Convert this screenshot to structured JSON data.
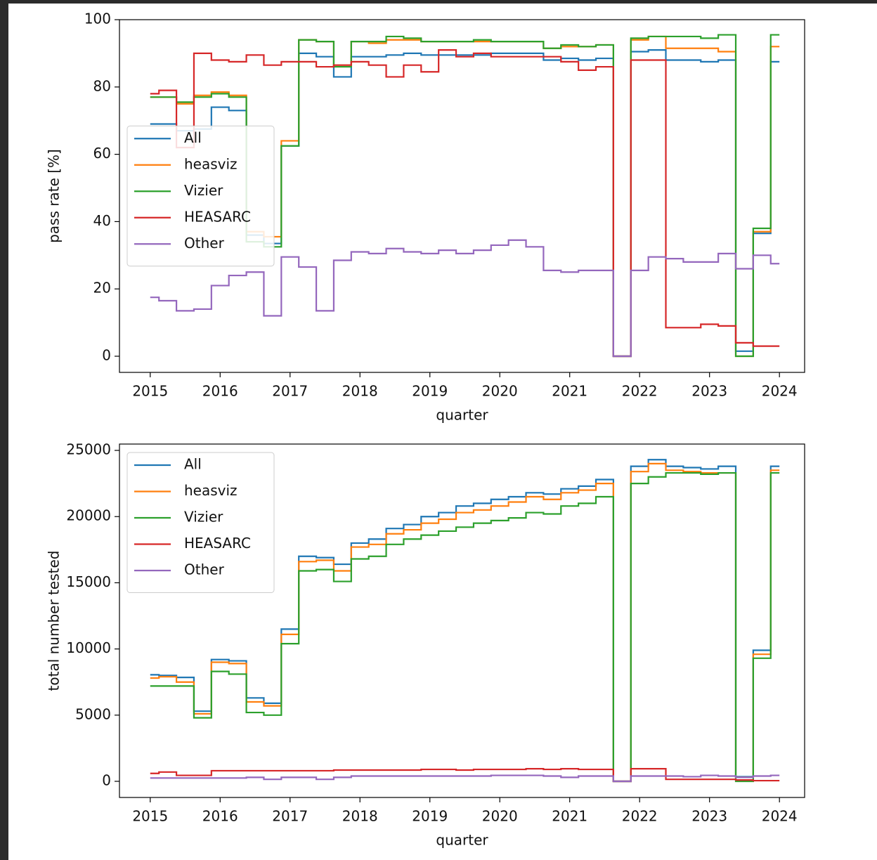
{
  "chart_data": [
    {
      "type": "line",
      "drawstyle": "steps-mid",
      "xlabel": "quarter",
      "ylabel": "pass rate [%]",
      "legend": "center left",
      "x": [
        2015,
        2015.25,
        2015.5,
        2015.75,
        2016,
        2016.25,
        2016.5,
        2016.75,
        2017,
        2017.25,
        2017.5,
        2017.75,
        2018,
        2018.25,
        2018.5,
        2018.75,
        2019,
        2019.25,
        2019.5,
        2019.75,
        2020,
        2020.25,
        2020.5,
        2020.75,
        2021,
        2021.25,
        2021.5,
        2021.75,
        2022,
        2022.25,
        2022.5,
        2022.75,
        2023,
        2023.25,
        2023.5,
        2023.75,
        2024
      ],
      "xlim": [
        2014.56,
        2024.36
      ],
      "xticks": [
        2015,
        2016,
        2017,
        2018,
        2019,
        2020,
        2021,
        2022,
        2023,
        2024
      ],
      "ylim": [
        -4.8,
        100
      ],
      "yticks": [
        0,
        20,
        40,
        60,
        80,
        100
      ],
      "series": [
        {
          "name": "All",
          "color": "#1f77b4",
          "values": [
            69,
            69,
            67,
            67.5,
            74,
            73,
            36,
            33.5,
            62.5,
            90,
            89,
            83,
            89,
            89,
            89.5,
            90,
            89.5,
            89.5,
            89.5,
            89.5,
            90,
            90,
            90,
            88,
            88.5,
            88,
            88.5,
            0,
            90.5,
            91,
            88,
            88,
            87.5,
            88,
            1.5,
            36.5,
            87.5
          ]
        },
        {
          "name": "heasviz",
          "color": "#ff7f0e",
          "values": [
            77,
            77,
            75,
            77.5,
            78.5,
            77.5,
            37,
            35.5,
            64,
            94,
            93.5,
            86.5,
            93.5,
            93,
            94,
            94,
            93.5,
            93.5,
            93.5,
            93.5,
            93.5,
            93.5,
            93.5,
            91.5,
            92,
            92,
            92.5,
            0,
            94,
            95,
            91.5,
            91.5,
            91.5,
            90.5,
            0,
            37,
            92
          ]
        },
        {
          "name": "Vizier",
          "color": "#2ca02c",
          "values": [
            77,
            77,
            75.5,
            77,
            78,
            77,
            34,
            32.5,
            62.5,
            94,
            93.5,
            86,
            93.5,
            93.5,
            95,
            94.5,
            93.5,
            93.5,
            93.5,
            94,
            93.5,
            93.5,
            93.5,
            91.5,
            92.5,
            92,
            92.5,
            0,
            94.5,
            95,
            95,
            95,
            94.5,
            95.5,
            0,
            38,
            95.5
          ]
        },
        {
          "name": "HEASARC",
          "color": "#d62728",
          "values": [
            78,
            79,
            62,
            90,
            88,
            87.5,
            89.5,
            86.5,
            87.5,
            87.5,
            86,
            86.5,
            87.5,
            86.5,
            83,
            86.5,
            84.5,
            91,
            89,
            90,
            89,
            89,
            89,
            89,
            87.5,
            85,
            86,
            0,
            88,
            88,
            8.5,
            8.5,
            9.5,
            9,
            4,
            3,
            3
          ]
        },
        {
          "name": "Other",
          "color": "#9467bd",
          "values": [
            17.5,
            16.5,
            13.5,
            14,
            21,
            24,
            25,
            12,
            29.5,
            26.5,
            13.5,
            28.5,
            31,
            30.5,
            32,
            31,
            30.5,
            31.5,
            30.5,
            31.5,
            33,
            34.5,
            32.5,
            25.5,
            25,
            25.5,
            25.5,
            0,
            25.5,
            29.5,
            29,
            28,
            28,
            30.5,
            26,
            30,
            27.5
          ]
        }
      ]
    },
    {
      "type": "line",
      "drawstyle": "steps-mid",
      "xlabel": "quarter",
      "ylabel": "total number tested",
      "legend": "upper left",
      "x": [
        2015,
        2015.25,
        2015.5,
        2015.75,
        2016,
        2016.25,
        2016.5,
        2016.75,
        2017,
        2017.25,
        2017.5,
        2017.75,
        2018,
        2018.25,
        2018.5,
        2018.75,
        2019,
        2019.25,
        2019.5,
        2019.75,
        2020,
        2020.25,
        2020.5,
        2020.75,
        2021,
        2021.25,
        2021.5,
        2021.75,
        2022,
        2022.25,
        2022.5,
        2022.75,
        2023,
        2023.25,
        2023.5,
        2023.75,
        2024
      ],
      "xlim": [
        2014.56,
        2024.36
      ],
      "xticks": [
        2015,
        2016,
        2017,
        2018,
        2019,
        2020,
        2021,
        2022,
        2023,
        2024
      ],
      "ylim": [
        -1220,
        25480
      ],
      "yticks": [
        0,
        5000,
        10000,
        15000,
        20000,
        25000
      ],
      "series": [
        {
          "name": "All",
          "color": "#1f77b4",
          "values": [
            8050,
            8000,
            7850,
            5300,
            9200,
            9100,
            6300,
            5900,
            11500,
            17000,
            16900,
            16400,
            18000,
            18300,
            19100,
            19400,
            20000,
            20300,
            20800,
            21000,
            21300,
            21500,
            21800,
            21700,
            22100,
            22300,
            22800,
            0,
            23800,
            24300,
            23800,
            23700,
            23600,
            23800,
            350,
            9900,
            23800
          ]
        },
        {
          "name": "heasviz",
          "color": "#ff7f0e",
          "values": [
            7800,
            7900,
            7500,
            5100,
            9000,
            8900,
            6000,
            5700,
            11100,
            16600,
            16700,
            15900,
            17700,
            17900,
            18700,
            19000,
            19500,
            19800,
            20300,
            20500,
            20800,
            21100,
            21500,
            21300,
            21800,
            22000,
            22500,
            0,
            23400,
            24000,
            23500,
            23400,
            23300,
            23300,
            300,
            9600,
            23500
          ]
        },
        {
          "name": "Vizier",
          "color": "#2ca02c",
          "values": [
            7200,
            7200,
            7200,
            4800,
            8300,
            8100,
            5200,
            5000,
            10400,
            15900,
            16000,
            15100,
            16800,
            17000,
            17900,
            18300,
            18600,
            18900,
            19200,
            19500,
            19700,
            19900,
            20300,
            20200,
            20800,
            21000,
            21500,
            0,
            22500,
            23000,
            23300,
            23300,
            23200,
            23300,
            0,
            9300,
            23300
          ]
        },
        {
          "name": "HEASARC",
          "color": "#d62728",
          "values": [
            600,
            700,
            450,
            450,
            800,
            800,
            800,
            800,
            800,
            800,
            800,
            850,
            850,
            850,
            850,
            850,
            900,
            900,
            850,
            900,
            900,
            900,
            950,
            900,
            950,
            900,
            900,
            0,
            950,
            950,
            150,
            150,
            150,
            150,
            100,
            50,
            50
          ]
        },
        {
          "name": "Other",
          "color": "#9467bd",
          "values": [
            250,
            250,
            250,
            250,
            250,
            250,
            300,
            150,
            300,
            300,
            150,
            300,
            400,
            400,
            400,
            400,
            400,
            400,
            400,
            400,
            450,
            450,
            450,
            400,
            300,
            400,
            400,
            0,
            400,
            400,
            400,
            350,
            450,
            400,
            300,
            400,
            450
          ]
        }
      ]
    }
  ]
}
